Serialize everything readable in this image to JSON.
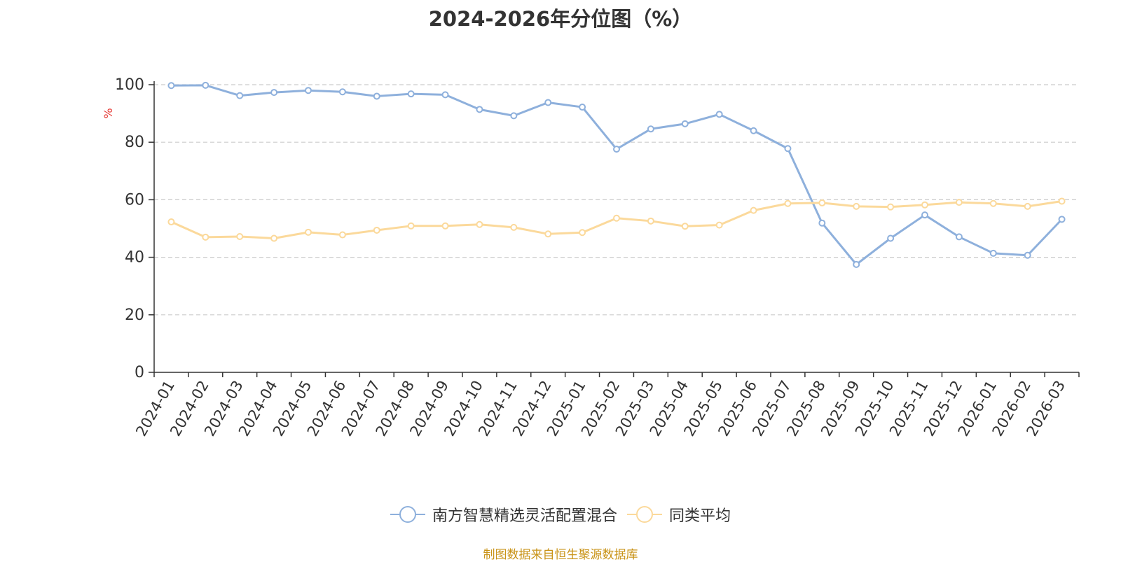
{
  "title": "2024-2026年分位图（%）",
  "source": "制图数据来自恒生聚源数据库",
  "chart_data": {
    "type": "line",
    "title": "2024-2026年分位图（%）",
    "ylabel": "%",
    "xlabel": "",
    "ylim": [
      0,
      100
    ],
    "yticks": [
      0,
      20,
      40,
      60,
      80,
      100
    ],
    "grid": true,
    "legend_position": "bottom",
    "categories": [
      "2024-01",
      "2024-02",
      "2024-03",
      "2024-04",
      "2024-05",
      "2024-06",
      "2024-07",
      "2024-08",
      "2024-09",
      "2024-10",
      "2024-11",
      "2024-12",
      "2025-01",
      "2025-02",
      "2025-03",
      "2025-04",
      "2025-05",
      "2025-06",
      "2025-07",
      "2025-08",
      "2025-09",
      "2025-10",
      "2025-11",
      "2025-12",
      "2026-01",
      "2026-02",
      "2026-03"
    ],
    "series": [
      {
        "name": "南方智慧精选灵活配置混合",
        "color": "#8eb0dc",
        "values": [
          99.7,
          99.8,
          96.2,
          97.3,
          98.0,
          97.5,
          96.0,
          96.8,
          96.5,
          91.4,
          89.2,
          93.8,
          92.2,
          77.6,
          84.6,
          86.4,
          89.7,
          84.0,
          77.8,
          51.9,
          37.5,
          46.6,
          54.7,
          47.1,
          41.4,
          40.7,
          53.2
        ]
      },
      {
        "name": "同类平均",
        "color": "#fbd99b",
        "values": [
          52.3,
          47.0,
          47.2,
          46.6,
          48.7,
          47.8,
          49.4,
          50.9,
          50.9,
          51.4,
          50.4,
          48.1,
          48.6,
          53.6,
          52.6,
          50.8,
          51.2,
          56.3,
          58.7,
          58.9,
          57.7,
          57.5,
          58.2,
          59.1,
          58.7,
          57.7,
          59.5
        ]
      }
    ]
  }
}
